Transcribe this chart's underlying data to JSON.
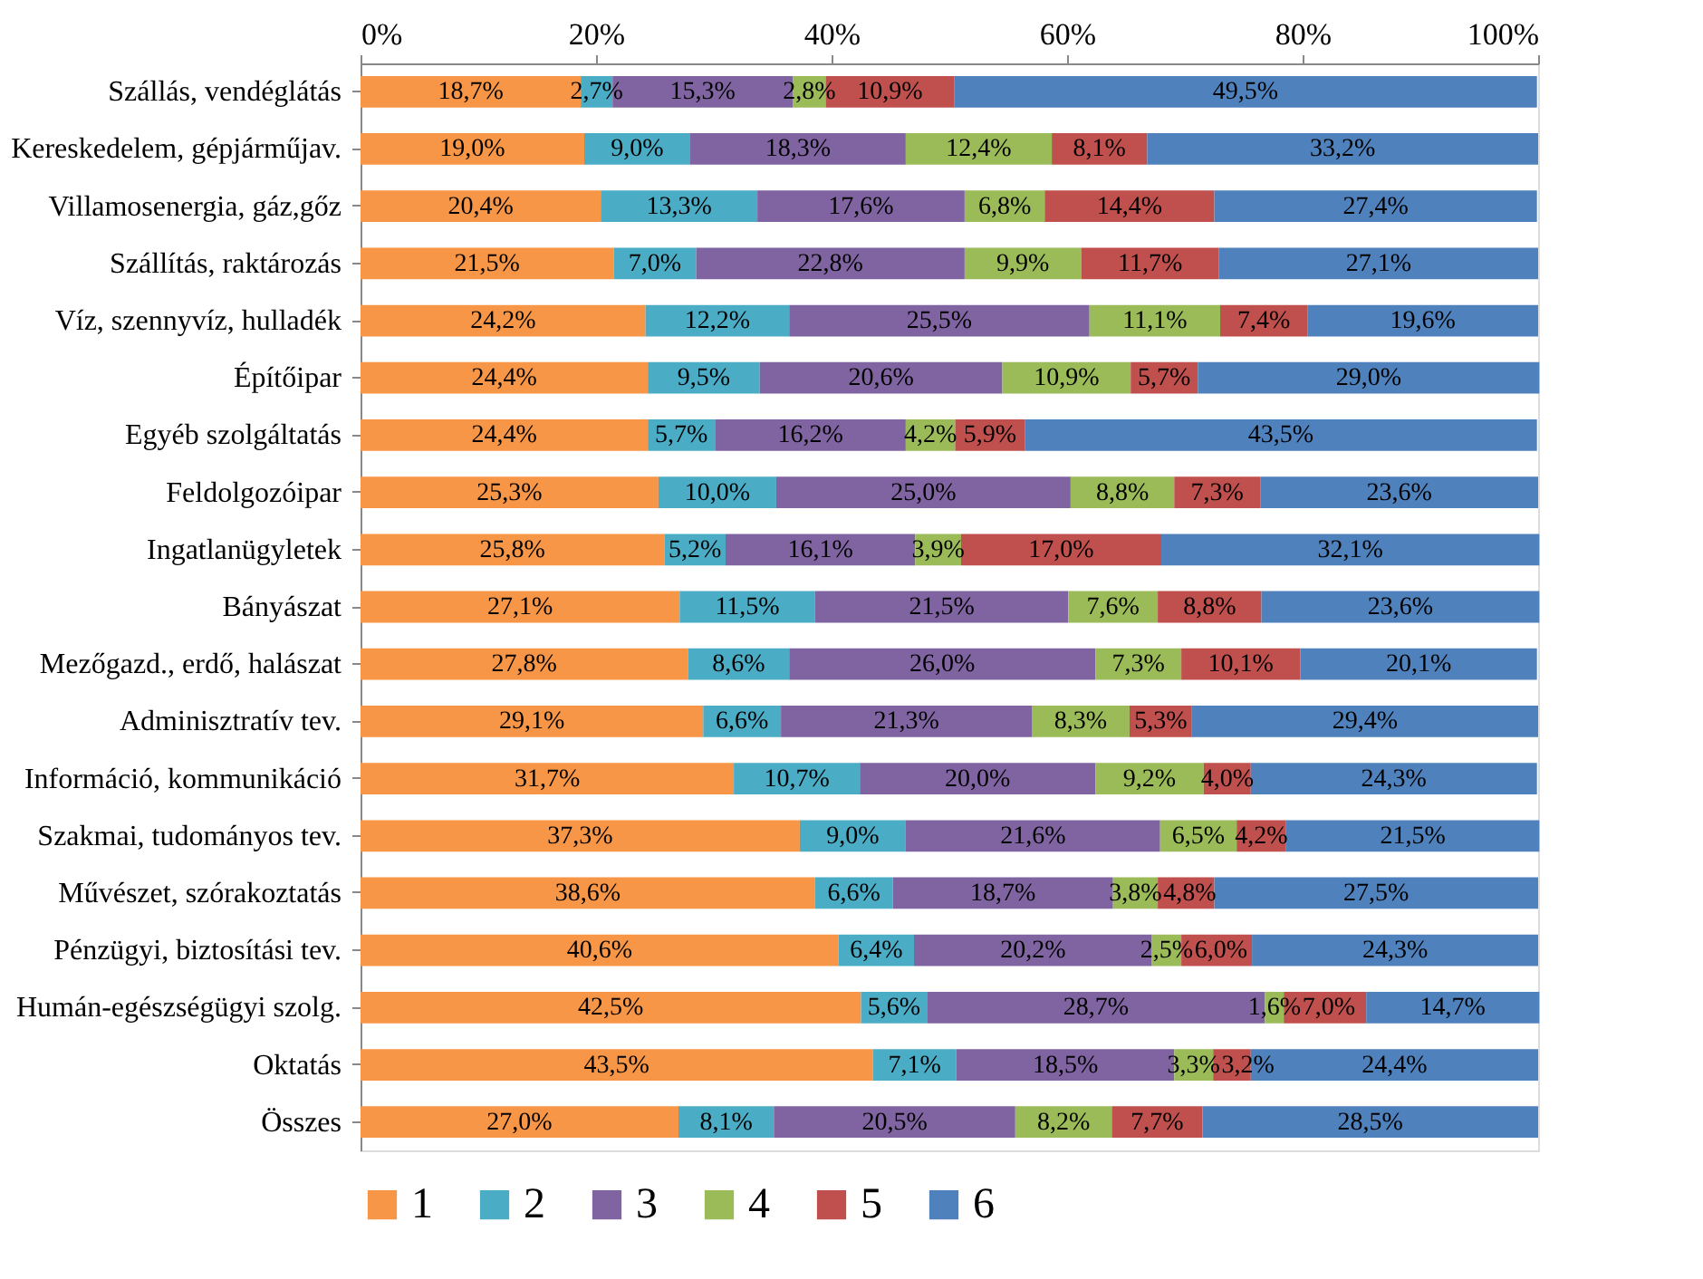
{
  "chart_data": {
    "type": "bar",
    "orientation": "horizontal",
    "stacked": true,
    "categories": [
      "Szállás, vendéglátás",
      "Kereskedelem, gépjárműjav.",
      "Villamosenergia, gáz,gőz",
      "Szállítás, raktározás",
      "Víz, szennyvíz, hulladék",
      "Építőipar",
      "Egyéb szolgáltatás",
      "Feldolgozóipar",
      "Ingatlanügyletek",
      "Bányászat",
      "Mezőgazd., erdő, halászat",
      "Adminisztratív tev.",
      "Információ, kommunikáció",
      "Szakmai, tudományos tev.",
      "Művészet, szórakoztatás",
      "Pénzügyi, biztosítási tev.",
      "Humán-egészségügyi szolg.",
      "Oktatás",
      "Összes"
    ],
    "series": [
      {
        "name": "1",
        "color": "#f79646",
        "values": [
          18.7,
          19.0,
          20.4,
          21.5,
          24.2,
          24.4,
          24.4,
          25.3,
          25.8,
          27.1,
          27.8,
          29.1,
          31.7,
          37.3,
          38.6,
          40.6,
          42.5,
          43.5,
          27.0
        ],
        "value_labels": [
          "18,7%",
          "19,0%",
          "20,4%",
          "21,5%",
          "24,2%",
          "24,4%",
          "24,4%",
          "25,3%",
          "25,8%",
          "27,1%",
          "27,8%",
          "29,1%",
          "31,7%",
          "37,3%",
          "38,6%",
          "40,6%",
          "42,5%",
          "43,5%",
          "27,0%"
        ]
      },
      {
        "name": "2",
        "color": "#4bacc6",
        "values": [
          2.7,
          9.0,
          13.3,
          7.0,
          12.2,
          9.5,
          5.7,
          10.0,
          5.2,
          11.5,
          8.6,
          6.6,
          10.7,
          9.0,
          6.6,
          6.4,
          5.6,
          7.1,
          8.1
        ],
        "value_labels": [
          "2,7%",
          "9,0%",
          "13,3%",
          "7,0%",
          "12,2%",
          "9,5%",
          "5,7%",
          "10,0%",
          "5,2%",
          "11,5%",
          "8,6%",
          "6,6%",
          "10,7%",
          "9,0%",
          "6,6%",
          "6,4%",
          "5,6%",
          "7,1%",
          "8,1%"
        ]
      },
      {
        "name": "3",
        "color": "#8064a2",
        "values": [
          15.3,
          18.3,
          17.6,
          22.8,
          25.5,
          20.6,
          16.2,
          25.0,
          16.1,
          21.5,
          26.0,
          21.3,
          20.0,
          21.6,
          18.7,
          20.2,
          28.7,
          18.5,
          20.5
        ],
        "value_labels": [
          "15,3%",
          "18,3%",
          "17,6%",
          "22,8%",
          "25,5%",
          "20,6%",
          "16,2%",
          "25,0%",
          "16,1%",
          "21,5%",
          "26,0%",
          "21,3%",
          "20,0%",
          "21,6%",
          "18,7%",
          "20,2%",
          "28,7%",
          "18,5%",
          "20,5%"
        ]
      },
      {
        "name": "4",
        "color": "#9bbb59",
        "values": [
          2.8,
          12.4,
          6.8,
          9.9,
          11.1,
          10.9,
          4.2,
          8.8,
          3.9,
          7.6,
          7.3,
          8.3,
          9.2,
          6.5,
          3.8,
          2.5,
          1.6,
          3.3,
          8.2
        ],
        "value_labels": [
          "2,8%",
          "12,4%",
          "6,8%",
          "9,9%",
          "11,1%",
          "10,9%",
          "4,2%",
          "8,8%",
          "3,9%",
          "7,6%",
          "7,3%",
          "8,3%",
          "9,2%",
          "6,5%",
          "3,8%",
          "2,5%",
          "1,6%",
          "3,3%",
          "8,2%"
        ]
      },
      {
        "name": "5",
        "color": "#c0504d",
        "values": [
          10.9,
          8.1,
          14.4,
          11.7,
          7.4,
          5.7,
          5.9,
          7.3,
          17.0,
          8.8,
          10.1,
          5.3,
          4.0,
          4.2,
          4.8,
          6.0,
          7.0,
          3.2,
          7.7
        ],
        "value_labels": [
          "10,9%",
          "8,1%",
          "14,4%",
          "11,7%",
          "7,4%",
          "5,7%",
          "5,9%",
          "7,3%",
          "17,0%",
          "8,8%",
          "10,1%",
          "5,3%",
          "4,0%",
          "4,2%",
          "4,8%",
          "6,0%",
          "7,0%",
          "3,2%",
          "7,7%"
        ]
      },
      {
        "name": "6",
        "color": "#4f81bd",
        "values": [
          49.5,
          33.2,
          27.4,
          27.1,
          19.6,
          29.0,
          43.5,
          23.6,
          32.1,
          23.6,
          20.1,
          29.4,
          24.3,
          21.5,
          27.5,
          24.3,
          14.7,
          24.4,
          28.5
        ],
        "value_labels": [
          "49,5%",
          "33,2%",
          "27,4%",
          "27,1%",
          "19,6%",
          "29,0%",
          "43,5%",
          "23,6%",
          "32,1%",
          "23,6%",
          "20,1%",
          "29,4%",
          "24,3%",
          "21,5%",
          "27,5%",
          "24,3%",
          "14,7%",
          "24,4%",
          "28,5%"
        ]
      }
    ],
    "xlim": [
      0,
      100
    ],
    "xticks": [
      {
        "value": 0,
        "label": "0%"
      },
      {
        "value": 20,
        "label": "20%"
      },
      {
        "value": 40,
        "label": "40%"
      },
      {
        "value": 60,
        "label": "60%"
      },
      {
        "value": 80,
        "label": "80%"
      },
      {
        "value": 100,
        "label": "100%"
      }
    ],
    "grid": false,
    "legend": "bottom"
  }
}
